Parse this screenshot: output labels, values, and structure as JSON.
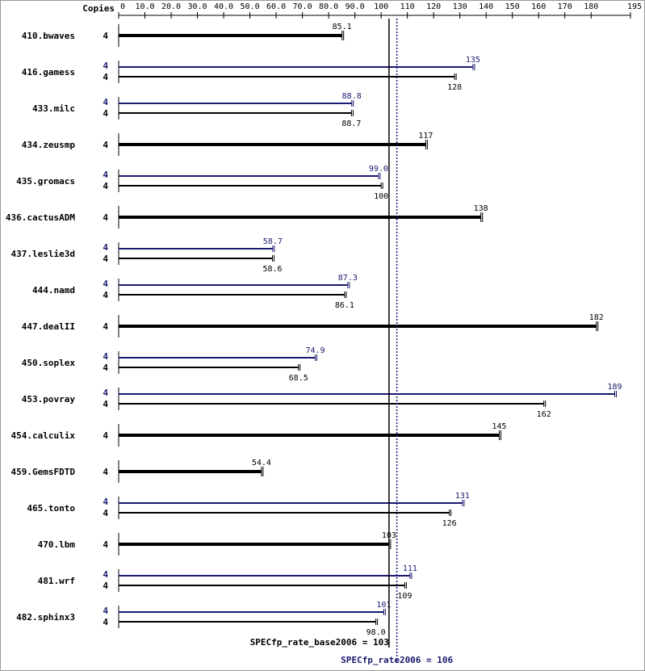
{
  "chart_data": {
    "type": "bar",
    "orientation": "horizontal",
    "x_axis_title": "Copies",
    "xlim": [
      0,
      195
    ],
    "x_ticks": [
      "0",
      "10.0",
      "20.0",
      "30.0",
      "40.0",
      "50.0",
      "60.0",
      "70.0",
      "80.0",
      "90.0",
      "100",
      "110",
      "120",
      "130",
      "140",
      "150",
      "160",
      "170",
      "180",
      "195"
    ],
    "x_tick_values": [
      0,
      10,
      20,
      30,
      40,
      50,
      60,
      70,
      80,
      90,
      100,
      110,
      120,
      130,
      140,
      150,
      160,
      170,
      180,
      195
    ],
    "colors": {
      "base": "#000000",
      "peak": "#191970",
      "axis": "#000000"
    },
    "series": [
      {
        "name": "SPECfp_rate_base2006",
        "color": "#000000"
      },
      {
        "name": "SPECfp_rate2006",
        "color": "#191970"
      }
    ],
    "benchmarks": [
      {
        "name": "410.bwaves",
        "copies": "4",
        "combined": true,
        "base": 85.1,
        "base_label": "85.1"
      },
      {
        "name": "416.gamess",
        "copies": "4",
        "combined": false,
        "peak": 135,
        "peak_label": "135",
        "base": 128,
        "base_label": "128"
      },
      {
        "name": "433.milc",
        "copies": "4",
        "combined": false,
        "peak": 88.8,
        "peak_label": "88.8",
        "base": 88.7,
        "base_label": "88.7"
      },
      {
        "name": "434.zeusmp",
        "copies": "4",
        "combined": true,
        "base": 117,
        "base_label": "117"
      },
      {
        "name": "435.gromacs",
        "copies": "4",
        "combined": false,
        "peak": 99.0,
        "peak_label": "99.0",
        "base": 100,
        "base_label": "100"
      },
      {
        "name": "436.cactusADM",
        "copies": "4",
        "combined": true,
        "base": 138,
        "base_label": "138"
      },
      {
        "name": "437.leslie3d",
        "copies": "4",
        "combined": false,
        "peak": 58.7,
        "peak_label": "58.7",
        "base": 58.6,
        "base_label": "58.6"
      },
      {
        "name": "444.namd",
        "copies": "4",
        "combined": false,
        "peak": 87.3,
        "peak_label": "87.3",
        "base": 86.1,
        "base_label": "86.1"
      },
      {
        "name": "447.dealII",
        "copies": "4",
        "combined": true,
        "base": 182,
        "base_label": "182"
      },
      {
        "name": "450.soplex",
        "copies": "4",
        "combined": false,
        "peak": 74.9,
        "peak_label": "74.9",
        "base": 68.5,
        "base_label": "68.5"
      },
      {
        "name": "453.povray",
        "copies": "4",
        "combined": false,
        "peak": 189,
        "peak_label": "189",
        "base": 162,
        "base_label": "162"
      },
      {
        "name": "454.calculix",
        "copies": "4",
        "combined": true,
        "base": 145,
        "base_label": "145"
      },
      {
        "name": "459.GemsFDTD",
        "copies": "4",
        "combined": true,
        "base": 54.4,
        "base_label": "54.4"
      },
      {
        "name": "465.tonto",
        "copies": "4",
        "combined": false,
        "peak": 131,
        "peak_label": "131",
        "base": 126,
        "base_label": "126"
      },
      {
        "name": "470.lbm",
        "copies": "4",
        "combined": true,
        "base": 103,
        "base_label": "103"
      },
      {
        "name": "481.wrf",
        "copies": "4",
        "combined": false,
        "peak": 111,
        "peak_label": "111",
        "base": 109,
        "base_label": "109"
      },
      {
        "name": "482.sphinx3",
        "copies": "4",
        "combined": false,
        "peak": 101,
        "peak_label": "101",
        "base": 98.0,
        "base_label": "98.0"
      }
    ],
    "summary": {
      "base_value": 103,
      "base_label": "SPECfp_rate_base2006 = 103",
      "peak_value": 106,
      "peak_label": "SPECfp_rate2006 = 106"
    }
  }
}
